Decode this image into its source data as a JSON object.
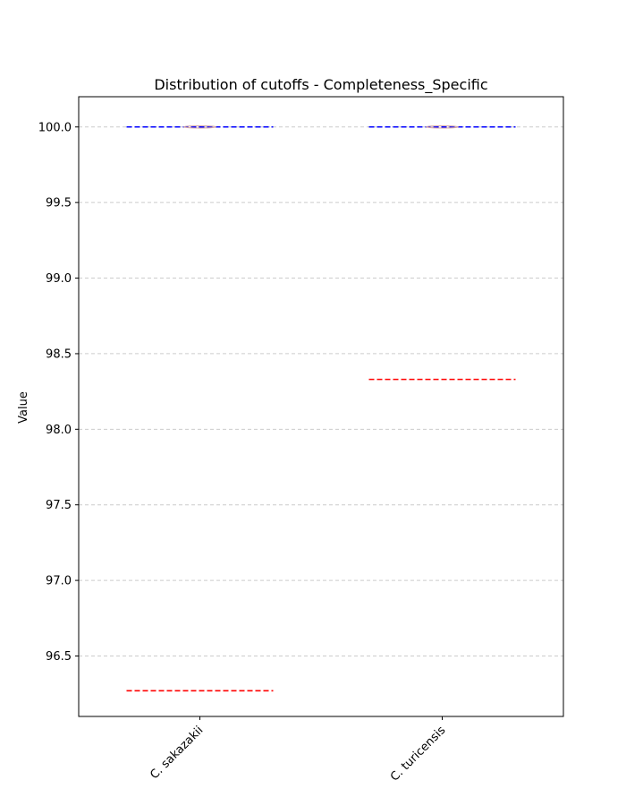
{
  "chart_data": {
    "type": "box",
    "title": "Distribution of cutoffs - Completeness_Specific",
    "xlabel": "",
    "ylabel": "Value",
    "categories": [
      "C. sakazakii",
      "C. turicensis"
    ],
    "ylim": [
      96.1,
      100.2
    ],
    "yticks": [
      96.5,
      97.0,
      97.5,
      98.0,
      98.5,
      99.0,
      99.5,
      100.0
    ],
    "ytick_labels": [
      "96.5",
      "97.0",
      "97.5",
      "98.0",
      "98.5",
      "99.0",
      "99.5",
      "100.0"
    ],
    "grid": "y-dashed",
    "series": [
      {
        "values": [
          100.0,
          100.0
        ],
        "color": "#0000ff",
        "line_style": "dashed"
      },
      {
        "values": [
          96.27,
          98.33
        ],
        "color": "#ff0000",
        "line_style": "dashed"
      }
    ],
    "box_medians": [
      100.0,
      100.0
    ],
    "box_color": "#d4a5a5"
  }
}
